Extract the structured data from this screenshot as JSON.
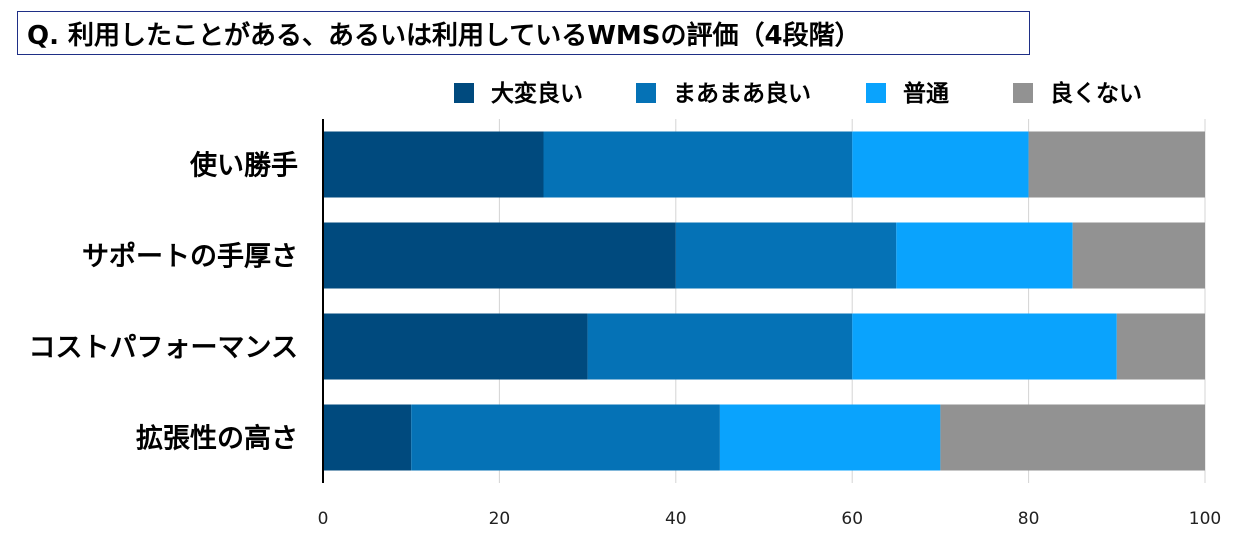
{
  "chart_data": {
    "type": "bar",
    "orientation": "horizontal",
    "stacked": true,
    "title": "Q. 利用したことがある、あるいは利用しているWMSの評価（4段階）",
    "categories": [
      "使い勝手",
      "サポートの手厚さ",
      "コストパフォーマンス",
      "拡張性の高さ"
    ],
    "series": [
      {
        "name": "大変良い",
        "color": "#004a7e",
        "values": [
          25,
          40,
          30,
          10
        ]
      },
      {
        "name": "まあまあ良い",
        "color": "#0572b6",
        "values": [
          35,
          25,
          30,
          35
        ]
      },
      {
        "name": "普通",
        "color": "#0aa3fd",
        "values": [
          20,
          20,
          30,
          25
        ]
      },
      {
        "name": "良くない",
        "color": "#929292",
        "values": [
          20,
          15,
          10,
          30
        ]
      }
    ],
    "xlim": [
      0,
      100
    ],
    "xticks": [
      0,
      20,
      40,
      60,
      80,
      100
    ],
    "legend_position": "top",
    "grid": true
  }
}
